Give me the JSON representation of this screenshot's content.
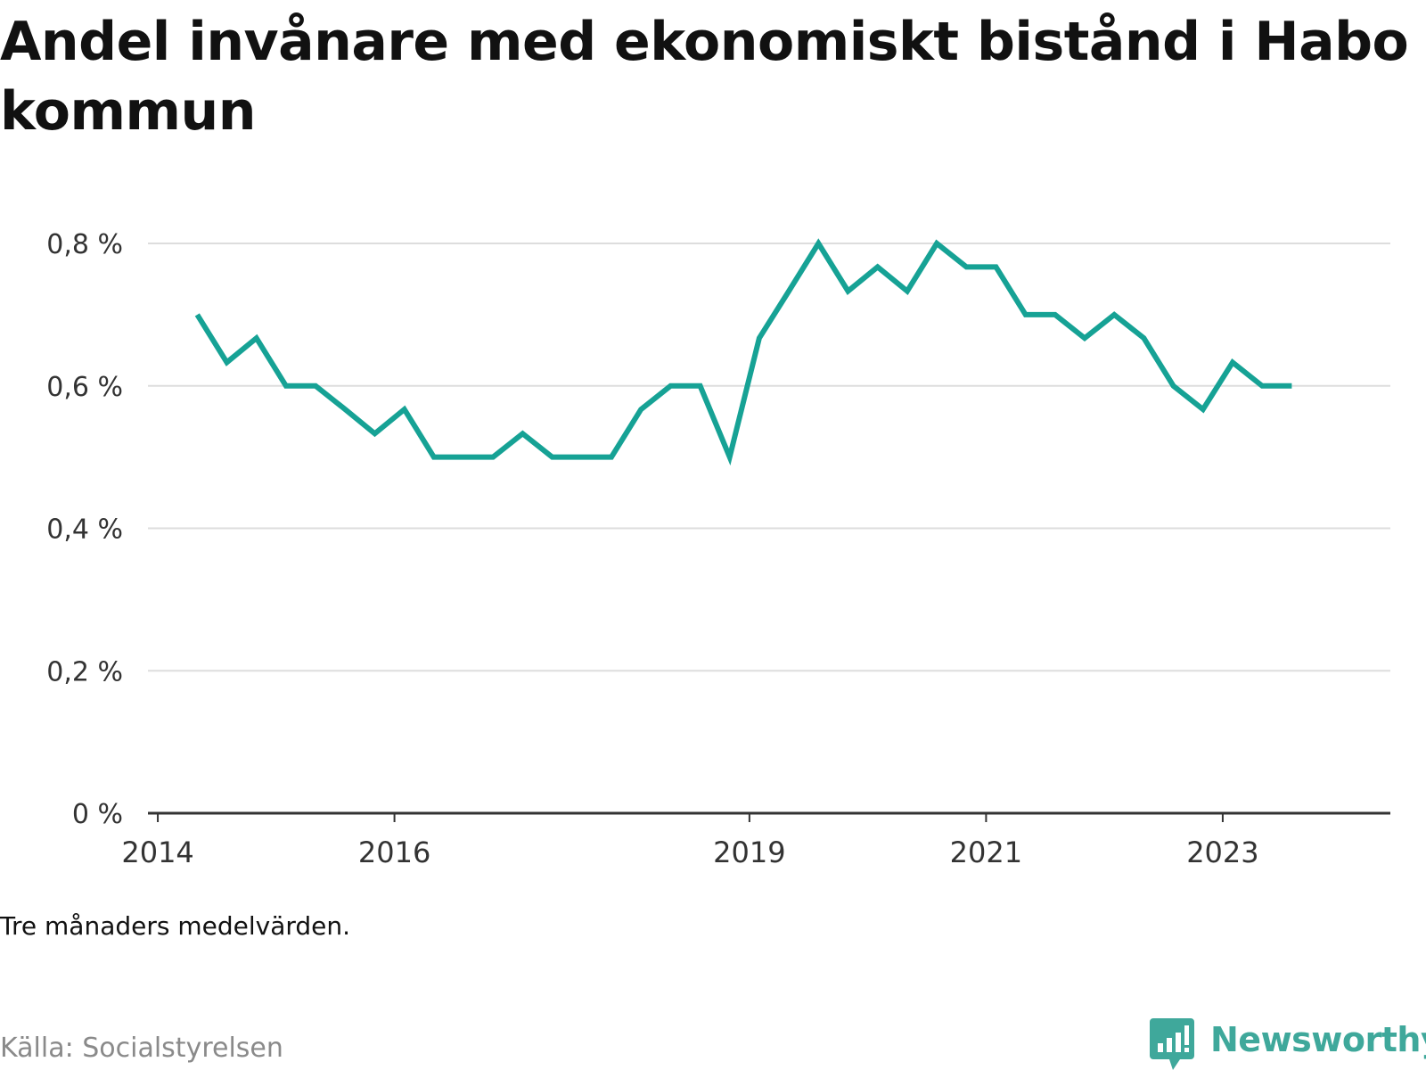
{
  "title": "Andel invånare med ekonomiskt bistånd i Habo kommun",
  "note": "Tre månaders medelvärden.",
  "source": "Källa: Socialstyrelsen",
  "brand": {
    "name": "Newsworthy",
    "icon": "bar-chart-speech-bubble-icon",
    "color": "#3fa89b"
  },
  "colors": {
    "line": "#16a295",
    "grid": "#dddddd",
    "axis": "#333333"
  },
  "chart_data": {
    "type": "line",
    "title": "Andel invånare med ekonomiskt bistånd i Habo kommun",
    "xlabel": "",
    "ylabel": "",
    "ylim": [
      0,
      0.8
    ],
    "xlim": [
      "2013-12",
      "2024-06"
    ],
    "y_ticks": [
      {
        "value": 0,
        "label": "0 %"
      },
      {
        "value": 0.2,
        "label": "0,2 %"
      },
      {
        "value": 0.4,
        "label": "0,4 %"
      },
      {
        "value": 0.6,
        "label": "0,6 %"
      },
      {
        "value": 0.8,
        "label": "0,8 %"
      }
    ],
    "x_ticks": [
      {
        "value": "2014-01",
        "label": "2014"
      },
      {
        "value": "2016-01",
        "label": "2016"
      },
      {
        "value": "2019-01",
        "label": "2019"
      },
      {
        "value": "2021-01",
        "label": "2021"
      },
      {
        "value": "2023-01",
        "label": "2023"
      }
    ],
    "grid": true,
    "legend": "none",
    "series": [
      {
        "x": [
          "2014-05",
          "2014-08",
          "2014-11",
          "2015-02",
          "2015-05",
          "2015-08",
          "2015-11",
          "2016-02",
          "2016-05",
          "2016-08",
          "2016-11",
          "2017-02",
          "2017-05",
          "2017-08",
          "2017-11",
          "2018-02",
          "2018-05",
          "2018-08",
          "2018-11",
          "2019-02",
          "2019-05",
          "2019-08",
          "2019-11",
          "2020-02",
          "2020-05",
          "2020-08",
          "2020-11",
          "2021-02",
          "2021-05",
          "2021-08",
          "2021-11",
          "2022-02",
          "2022-05",
          "2022-08",
          "2022-11",
          "2023-02",
          "2023-05",
          "2023-08"
        ],
        "values": [
          0.7,
          0.633,
          0.667,
          0.6,
          0.6,
          0.567,
          0.533,
          0.567,
          0.5,
          0.5,
          0.5,
          0.533,
          0.5,
          0.5,
          0.5,
          0.567,
          0.6,
          0.6,
          0.5,
          0.667,
          0.733,
          0.8,
          0.733,
          0.767,
          0.733,
          0.8,
          0.767,
          0.767,
          0.7,
          0.7,
          0.667,
          0.7,
          0.667,
          0.6,
          0.567,
          0.633,
          0.6,
          0.6
        ]
      }
    ]
  }
}
